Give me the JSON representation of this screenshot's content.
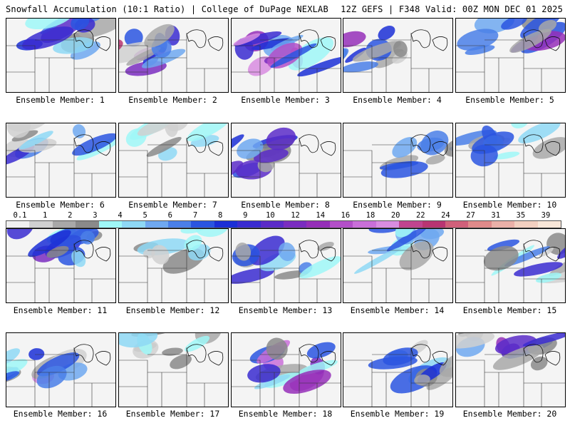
{
  "header": {
    "left": "Snowfall Accumulation (10:1 Ratio) | College of DuPage NEXLAB",
    "right": "12Z GEFS | F348 Valid: 00Z MON DEC 01 2025"
  },
  "members": [
    {
      "label": "Ensemble Member: 1",
      "intensity": 0.55,
      "focus": "north"
    },
    {
      "label": "Ensemble Member: 2",
      "intensity": 0.8,
      "focus": "west"
    },
    {
      "label": "Ensemble Member: 3",
      "intensity": 0.75,
      "focus": "central"
    },
    {
      "label": "Ensemble Member: 4",
      "intensity": 0.6,
      "focus": "west"
    },
    {
      "label": "Ensemble Member: 5",
      "intensity": 0.6,
      "focus": "north"
    },
    {
      "label": "Ensemble Member: 6",
      "intensity": 0.45,
      "focus": "north"
    },
    {
      "label": "Ensemble Member: 7",
      "intensity": 0.3,
      "focus": "north"
    },
    {
      "label": "Ensemble Member: 8",
      "intensity": 0.55,
      "focus": "west"
    },
    {
      "label": "Ensemble Member: 9",
      "intensity": 0.4,
      "focus": "east"
    },
    {
      "label": "Ensemble Member: 10",
      "intensity": 0.45,
      "focus": "north"
    },
    {
      "label": "Ensemble Member: 11",
      "intensity": 0.55,
      "focus": "north"
    },
    {
      "label": "Ensemble Member: 12",
      "intensity": 0.25,
      "focus": "north"
    },
    {
      "label": "Ensemble Member: 13",
      "intensity": 0.5,
      "focus": "central"
    },
    {
      "label": "Ensemble Member: 14",
      "intensity": 0.35,
      "focus": "north"
    },
    {
      "label": "Ensemble Member: 15",
      "intensity": 0.45,
      "focus": "east"
    },
    {
      "label": "Ensemble Member: 16",
      "intensity": 0.85,
      "focus": "west"
    },
    {
      "label": "Ensemble Member: 17",
      "intensity": 0.25,
      "focus": "north"
    },
    {
      "label": "Ensemble Member: 18",
      "intensity": 0.7,
      "focus": "central"
    },
    {
      "label": "Ensemble Member: 19",
      "intensity": 0.5,
      "focus": "east"
    },
    {
      "label": "Ensemble Member: 20",
      "intensity": 0.6,
      "focus": "north"
    }
  ],
  "colorbar": {
    "ticks": [
      "0.1",
      "1",
      "2",
      "3",
      "4",
      "5",
      "6",
      "7",
      "8",
      "9",
      "10",
      "12",
      "14",
      "16",
      "18",
      "20",
      "22",
      "24",
      "27",
      "31",
      "35",
      "39"
    ],
    "colors": [
      "#f0f0f0",
      "#d0d0d0",
      "#a8a8a8",
      "#8a8a8a",
      "#9ff7f7",
      "#8ed8f5",
      "#6fa8f0",
      "#4a7fe8",
      "#2a55e0",
      "#1b2fd6",
      "#3a2cd0",
      "#5b2bc8",
      "#7a2dc0",
      "#952fb8",
      "#b34fc8",
      "#c96fd8",
      "#d88ce0",
      "#c0448f",
      "#b83572",
      "#d0607a",
      "#e08a8a",
      "#eab0a8",
      "#f2cfc0",
      "#f8e6d8"
    ]
  }
}
